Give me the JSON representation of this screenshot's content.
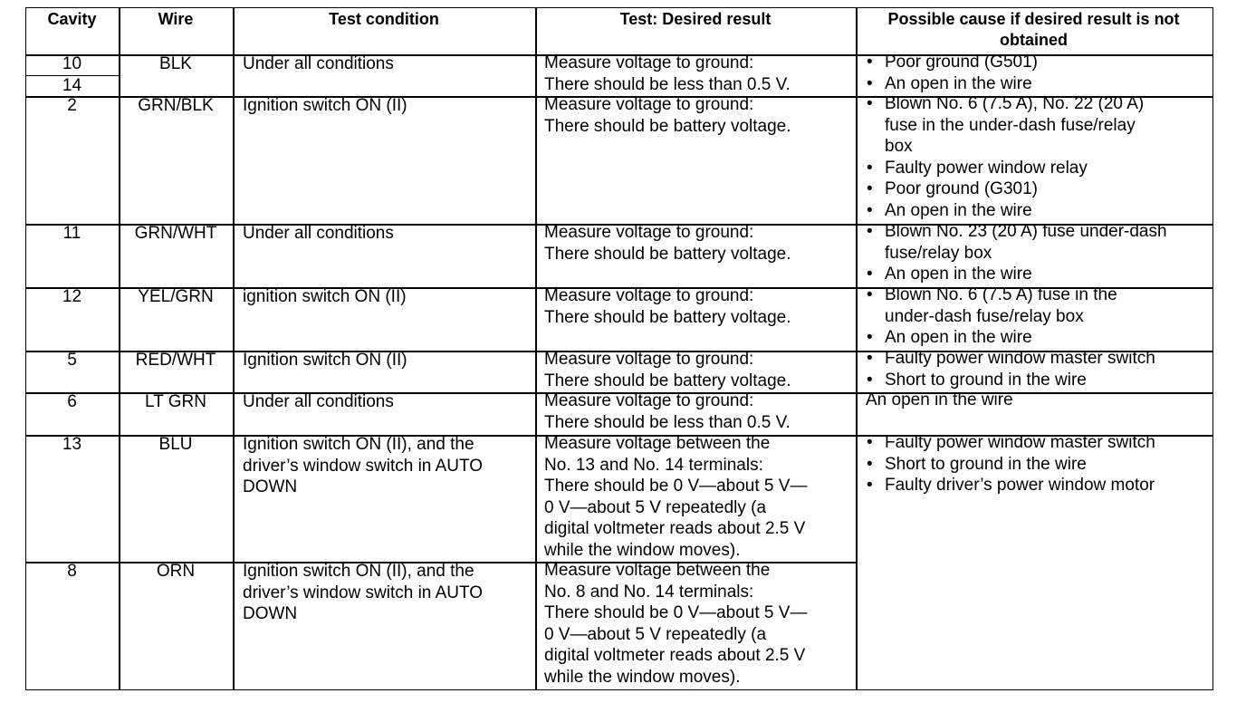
{
  "table": {
    "header": [
      [
        "Cavity"
      ],
      [
        "Wire"
      ],
      [
        "Test condition"
      ],
      [
        "Test: Desired result"
      ],
      [
        "Possible cause if desired result is not",
        "obtained"
      ]
    ],
    "rows": [
      {
        "cavity": [
          "10",
          "14"
        ],
        "wire": "BLK",
        "condition": [
          "Under all conditions"
        ],
        "result": [
          "Measure voltage to ground:",
          "There should be less than 0.5 V."
        ],
        "causes": [
          [
            "Poor ground (G501)"
          ],
          [
            "An open in the wire"
          ]
        ]
      },
      {
        "cavity": [
          "2"
        ],
        "wire": "GRN/BLK",
        "condition": [
          "Ignition switch ON (II)"
        ],
        "result": [
          "Measure voltage to ground:",
          "There should be battery voltage."
        ],
        "causes": [
          [
            "Blown No. 6 (7.5 A), No. 22 (20 A)",
            "fuse in the under-dash fuse/relay",
            "box"
          ],
          [
            "Faulty power window relay"
          ],
          [
            "Poor ground (G301)"
          ],
          [
            "An open in the wire"
          ]
        ]
      },
      {
        "cavity": [
          "11"
        ],
        "wire": "GRN/WHT",
        "condition": [
          "Under all conditions"
        ],
        "result": [
          "Measure voltage to ground:",
          "There should be battery voltage."
        ],
        "causes": [
          [
            "Blown No. 23 (20 A) fuse under-dash",
            "fuse/relay box"
          ],
          [
            "An open in the wire"
          ]
        ]
      },
      {
        "cavity": [
          "12"
        ],
        "wire": "YEL/GRN",
        "condition": [
          "ignition switch ON (II)"
        ],
        "result": [
          "Measure voltage to ground:",
          "There should be battery voltage."
        ],
        "causes": [
          [
            "Blown No. 6 (7.5 A) fuse in the",
            "under-dash fuse/relay box"
          ],
          [
            "An open in the wire"
          ]
        ]
      },
      {
        "cavity": [
          "5"
        ],
        "wire": "RED/WHT",
        "condition": [
          "Ignition switch ON (II)"
        ],
        "result": [
          "Measure voltage to ground:",
          "There should be battery voltage."
        ],
        "causes": [
          [
            "Faulty power window master switch"
          ],
          [
            "Short to ground in the wire"
          ]
        ]
      },
      {
        "cavity": [
          "6"
        ],
        "wire": "LT GRN",
        "condition": [
          "Under all conditions"
        ],
        "result": [
          "Measure voltage to ground:",
          "There should be less than 0.5 V."
        ],
        "cause": "An open in the wire"
      },
      {
        "cavity": [
          "13"
        ],
        "wire": "BLU",
        "condition": [
          "Ignition switch ON (II), and the",
          "driver’s window switch in AUTO",
          "DOWN"
        ],
        "result": [
          "Measure voltage between the",
          "No. 13 and No. 14 terminals:",
          "There should be 0 V—about 5 V—",
          "0 V—about 5 V repeatedly (a",
          "digital voltmeter reads about 2.5 V",
          "while the window moves)."
        ],
        "causes": [
          [
            "Faulty power window master switch"
          ],
          [
            "Short to ground in the wire"
          ],
          [
            "Faulty driver’s power window motor"
          ]
        ]
      },
      {
        "cavity": [
          "8"
        ],
        "wire": "ORN",
        "condition": [
          "Ignition switch ON (II), and the",
          "driver’s window switch in AUTO",
          "DOWN"
        ],
        "result": [
          "Measure voltage between the",
          "No. 8 and No. 14 terminals:",
          "There should be 0 V—about 5 V—",
          "0 V—about 5 V repeatedly (a",
          "digital voltmeter reads about 2.5 V",
          "while the window moves)."
        ]
      }
    ]
  }
}
